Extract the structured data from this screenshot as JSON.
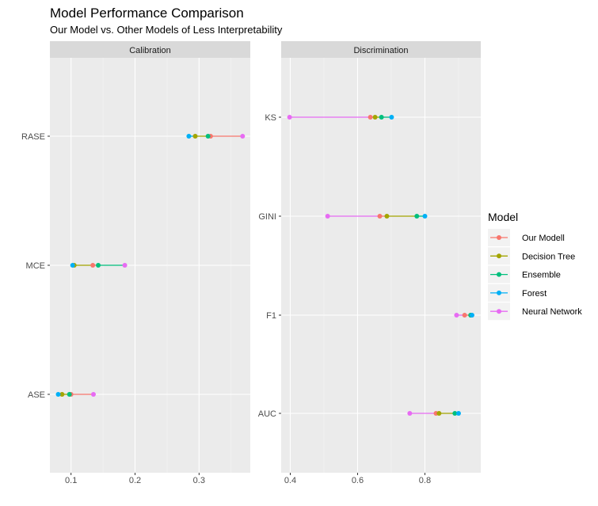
{
  "chart_data": {
    "type": "dot-range",
    "title": "Model Performance Comparison",
    "subtitle": "Our Model vs. Other Models of Less Interpretability",
    "legend": {
      "title": "Model",
      "placement": "right",
      "entries": [
        {
          "name": "Our Modell",
          "color": "#F8766D"
        },
        {
          "name": "Decision Tree",
          "color": "#A3A500"
        },
        {
          "name": "Ensemble",
          "color": "#00BF7D"
        },
        {
          "name": "Forest",
          "color": "#00B0F6"
        },
        {
          "name": "Neural Network",
          "color": "#E76BF3"
        }
      ]
    },
    "panels": [
      {
        "strip": "Calibration",
        "xlim": [
          0.067,
          0.38
        ],
        "xticks": [
          0.1,
          0.2,
          0.3
        ],
        "xtick_labels": [
          "0.1",
          "0.2",
          "0.3"
        ],
        "categories": [
          "RASE",
          "MCE",
          "ASE"
        ],
        "series": [
          {
            "name": "Our Modell",
            "values": [
              0.318,
              0.134,
              0.1
            ]
          },
          {
            "name": "Decision Tree",
            "values": [
              0.294,
              0.105,
              0.086
            ]
          },
          {
            "name": "Ensemble",
            "values": [
              0.314,
              0.1425,
              0.0975
            ]
          },
          {
            "name": "Forest",
            "values": [
              0.284,
              0.1025,
              0.08
            ]
          },
          {
            "name": "Neural Network",
            "values": [
              0.368,
              0.184,
              0.135
            ]
          }
        ]
      },
      {
        "strip": "Discrimination",
        "xlim": [
          0.373,
          0.966
        ],
        "xticks": [
          0.4,
          0.6,
          0.8
        ],
        "xtick_labels": [
          "0.4",
          "0.6",
          "0.8"
        ],
        "categories": [
          "KS",
          "GINI",
          "F1",
          "AUC"
        ],
        "series": [
          {
            "name": "Our Modell",
            "values": [
              0.638,
              0.666,
              0.918,
              0.833
            ]
          },
          {
            "name": "Decision Tree",
            "values": [
              0.652,
              0.687,
              0.936,
              0.842
            ]
          },
          {
            "name": "Ensemble",
            "values": [
              0.671,
              0.776,
              0.936,
              0.889
            ]
          },
          {
            "name": "Forest",
            "values": [
              0.701,
              0.8,
              0.94,
              0.9
            ]
          },
          {
            "name": "Neural Network",
            "values": [
              0.398,
              0.511,
              0.894,
              0.755
            ]
          }
        ]
      }
    ]
  }
}
